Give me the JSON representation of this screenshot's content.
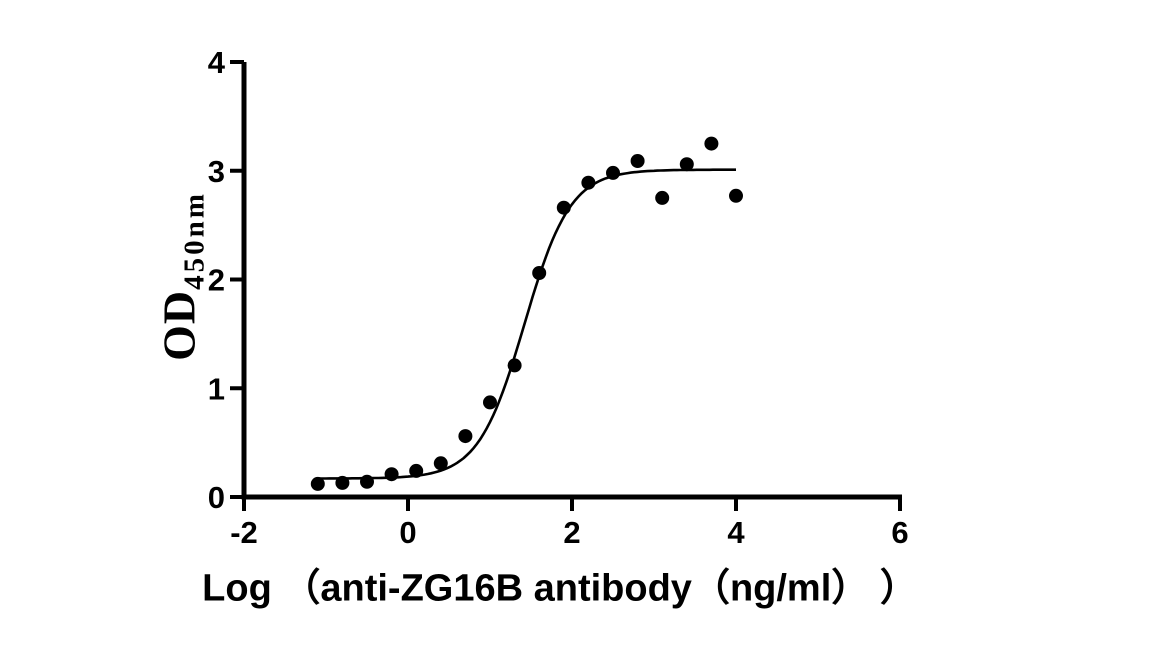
{
  "figure": {
    "background_color": "#ffffff",
    "foreground_color": "#000000"
  },
  "chart_data": {
    "type": "scatter",
    "title": "",
    "xlabel": "Log （anti-ZG16B antibody（ng/ml） ）",
    "ylabel": "OD",
    "ylabel_subscript": "450nm",
    "xlim": [
      -2,
      6
    ],
    "ylim": [
      0,
      4
    ],
    "x_ticks": [
      "-2",
      "0",
      "2",
      "4",
      "6"
    ],
    "y_ticks": [
      "0",
      "1",
      "2",
      "3",
      "4"
    ],
    "grid": false,
    "series": [
      {
        "marker": "filled-circle",
        "color": "#000000",
        "x": [
          -1.1,
          -0.8,
          -0.5,
          -0.2,
          0.1,
          0.4,
          0.7,
          1.0,
          1.3,
          1.6,
          1.9,
          2.2,
          2.5,
          2.8,
          3.1,
          3.4,
          3.7,
          4.0
        ],
        "y": [
          0.12,
          0.13,
          0.14,
          0.21,
          0.24,
          0.31,
          0.56,
          0.87,
          1.21,
          2.06,
          2.66,
          2.89,
          2.98,
          3.09,
          2.75,
          3.06,
          3.25,
          2.77
        ]
      }
    ],
    "fit_curve": {
      "model": "4PL-sigmoid",
      "bottom": 0.17,
      "top": 3.01,
      "logEC50": 1.42,
      "hill_slope": 1.55,
      "x_start": -1.12,
      "x_end": 4.0,
      "color": "#000000"
    }
  }
}
